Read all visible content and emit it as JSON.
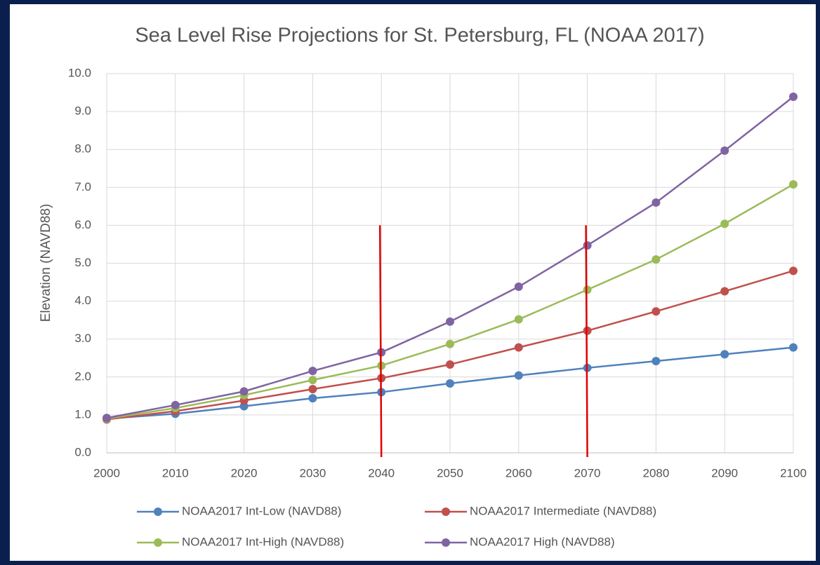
{
  "chart_data": {
    "type": "line",
    "title": "Sea Level Rise Projections for St. Petersburg, FL (NOAA 2017)",
    "y_label": "Elevation (NAVD88)",
    "x": [
      2000,
      2010,
      2020,
      2030,
      2040,
      2050,
      2060,
      2070,
      2080,
      2090,
      2100
    ],
    "series": [
      {
        "name": "NOAA2017 Int-Low (NAVD88)",
        "color": "#4f81bd",
        "values": [
          0.9,
          1.03,
          1.23,
          1.44,
          1.6,
          1.83,
          2.04,
          2.24,
          2.42,
          2.6,
          2.78
        ]
      },
      {
        "name": "NOAA2017 Intermediate (NAVD88)",
        "color": "#c0504d",
        "values": [
          0.88,
          1.1,
          1.38,
          1.68,
          1.97,
          2.33,
          2.78,
          3.22,
          3.73,
          4.26,
          4.8
        ]
      },
      {
        "name": "NOAA2017 Int-High (NAVD88)",
        "color": "#9bbb59",
        "values": [
          0.9,
          1.18,
          1.52,
          1.92,
          2.3,
          2.87,
          3.52,
          4.3,
          5.1,
          6.04,
          7.08
        ]
      },
      {
        "name": "NOAA2017 High (NAVD88)",
        "color": "#8064a2",
        "values": [
          0.92,
          1.26,
          1.62,
          2.16,
          2.65,
          3.46,
          4.38,
          5.47,
          6.6,
          7.97,
          9.39
        ]
      }
    ],
    "vertical_lines": [
      {
        "x": 2040,
        "y": 6,
        "color": "#e00000"
      },
      {
        "x": 2070,
        "y": 6,
        "color": "#e00000"
      }
    ],
    "xlim": [
      2000,
      2100
    ],
    "xticks": [
      2000,
      2010,
      2020,
      2030,
      2040,
      2050,
      2060,
      2070,
      2080,
      2090,
      2100
    ],
    "ylim": [
      0,
      10
    ],
    "yticks": [
      {
        "value": 0,
        "label": "0.0"
      },
      {
        "value": 1,
        "label": "1.0"
      },
      {
        "value": 2,
        "label": "2.0"
      },
      {
        "value": 3,
        "label": "3.0"
      },
      {
        "value": 4,
        "label": "4.0"
      },
      {
        "value": 5,
        "label": "5.0"
      },
      {
        "value": 6,
        "label": "6.0"
      },
      {
        "value": 7,
        "label": "7.0"
      },
      {
        "value": 8,
        "label": "8.0"
      },
      {
        "value": 9,
        "label": "9.0"
      },
      {
        "value": 10,
        "label": "10.0"
      }
    ],
    "grid": true,
    "legend": "bottom"
  }
}
